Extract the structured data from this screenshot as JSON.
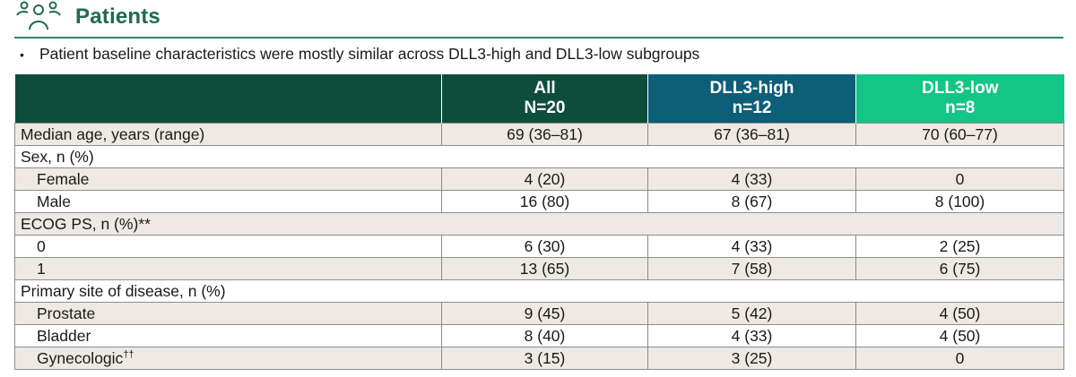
{
  "header": {
    "icon": "people-group-icon",
    "title": "Patients",
    "accent_color": "#1f6b4f"
  },
  "bullets": [
    "Patient baseline characteristics were mostly similar across DLL3-high and DLL3-low subgroups"
  ],
  "table": {
    "columns": [
      {
        "line1": "",
        "line2": "",
        "color": "#0e4d3c"
      },
      {
        "line1": "All",
        "line2": "N=20",
        "color": "#0e4d3c"
      },
      {
        "line1": "DLL3-high",
        "line2": "n=12",
        "color": "#0d5e78"
      },
      {
        "line1": "DLL3-low",
        "line2": "n=8",
        "color": "#13c586"
      }
    ],
    "rows": [
      {
        "label": "Median age, years (range)",
        "all": "69 (36–81)",
        "high": "67 (36–81)",
        "low": "70 (60–77)"
      },
      {
        "label": "Sex, n (%)",
        "section": true
      },
      {
        "label": "Female",
        "all": "4 (20)",
        "high": "4 (33)",
        "low": "0"
      },
      {
        "label": "Male",
        "all": "16 (80)",
        "high": "8 (67)",
        "low": "8 (100)"
      },
      {
        "label": "ECOG PS, n (%)**",
        "section": true
      },
      {
        "label": "0",
        "all": "6 (30)",
        "high": "4 (33)",
        "low": "2 (25)"
      },
      {
        "label": "1",
        "all": "13 (65)",
        "high": "7 (58)",
        "low": "6 (75)"
      },
      {
        "label": "Primary site of disease, n (%)",
        "section": true
      },
      {
        "label": "Prostate",
        "all": "9 (45)",
        "high": "5 (42)",
        "low": "4 (50)"
      },
      {
        "label": "Bladder",
        "all": "8 (40)",
        "high": "4 (33)",
        "low": "4 (50)"
      },
      {
        "label": "Gynecologic",
        "footnote": "††",
        "all": "3 (15)",
        "high": "3 (25)",
        "low": "0"
      }
    ]
  }
}
